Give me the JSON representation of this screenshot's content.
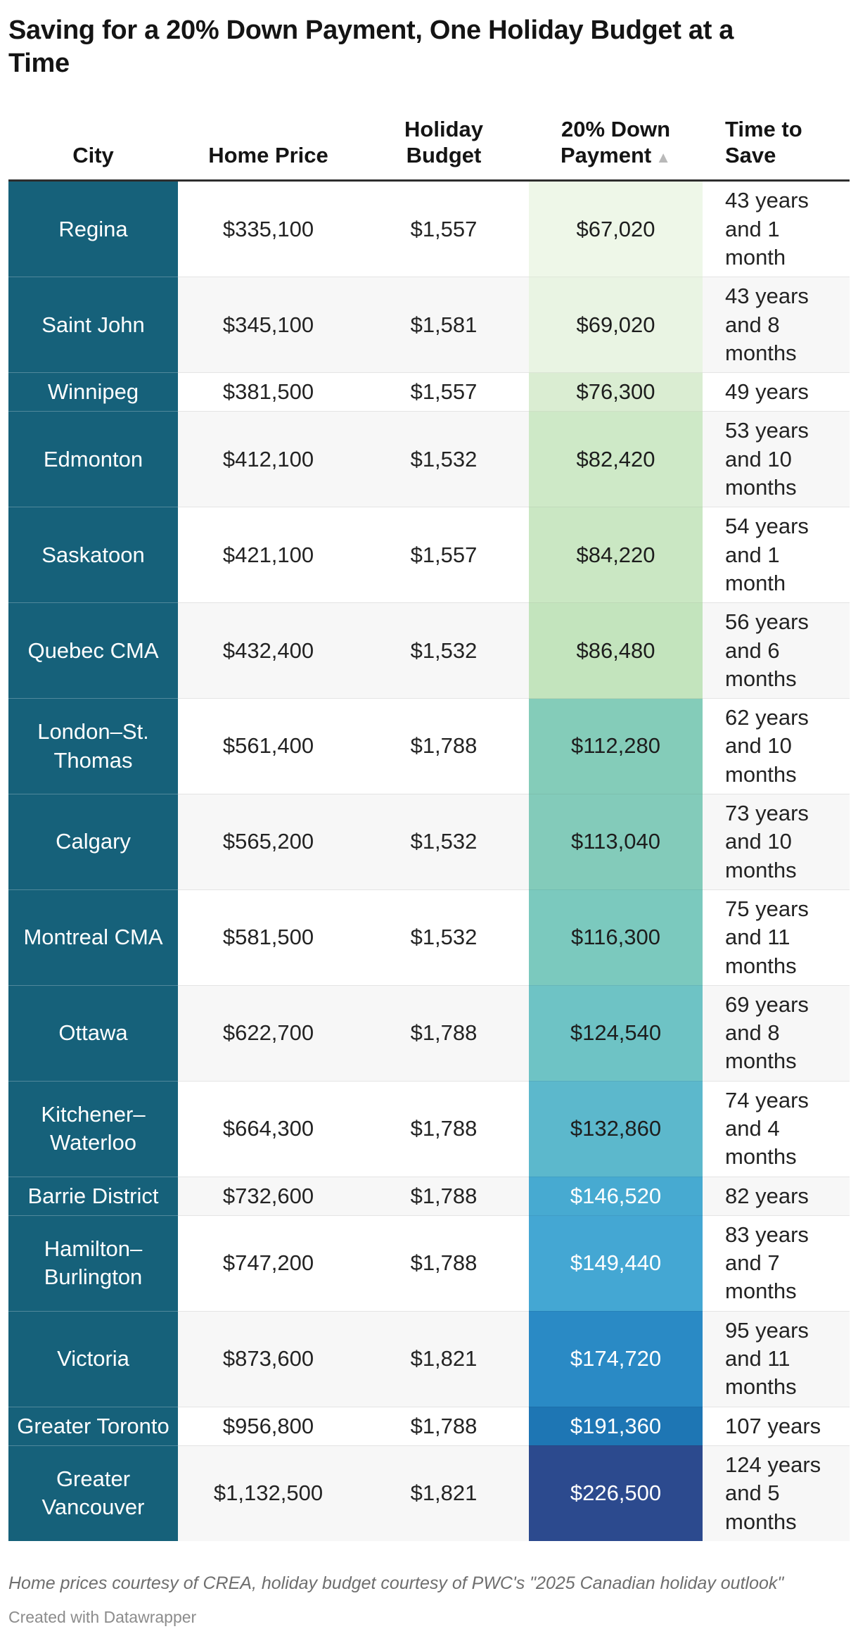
{
  "title": "Saving for a 20% Down Payment, One Holiday Budget at a Time",
  "colors": {
    "city_column_bg": "#16617A",
    "city_text": "#ffffff",
    "header_rule": "#2e2e2e",
    "row_alt_bg": "#f7f7f7",
    "row_divider": "#e4e4e4",
    "sort_arrow": "#b9b9b9"
  },
  "table": {
    "headers": [
      "City",
      "Home Price",
      "Holiday Budget",
      "20% Down Payment",
      "Time to Save"
    ],
    "sort_icon": "▲",
    "sorted_column": "20% Down Payment",
    "rows": [
      {
        "city": "Regina",
        "home_price": "$335,100",
        "holiday_budget": "$1,557",
        "down_payment": "$67,020",
        "time_to_save": "43 years and 1 month",
        "payment_bg": "#EEF7E8",
        "payment_text_color": "#1d1d1d"
      },
      {
        "city": "Saint John",
        "home_price": "$345,100",
        "holiday_budget": "$1,581",
        "down_payment": "$69,020",
        "time_to_save": "43 years and 8 months",
        "payment_bg": "#E9F4E3",
        "payment_text_color": "#1d1d1d"
      },
      {
        "city": "Winnipeg",
        "home_price": "$381,500",
        "holiday_budget": "$1,557",
        "down_payment": "$76,300",
        "time_to_save": "49 years",
        "payment_bg": "#DAEDD2",
        "payment_text_color": "#1d1d1d"
      },
      {
        "city": "Edmonton",
        "home_price": "$412,100",
        "holiday_budget": "$1,532",
        "down_payment": "$82,420",
        "time_to_save": "53 years and 10 months",
        "payment_bg": "#CEE9C7",
        "payment_text_color": "#1d1d1d"
      },
      {
        "city": "Saskatoon",
        "home_price": "$421,100",
        "holiday_budget": "$1,557",
        "down_payment": "$84,220",
        "time_to_save": "54 years and 1 month",
        "payment_bg": "#CAE7C3",
        "payment_text_color": "#1d1d1d"
      },
      {
        "city": "Quebec CMA",
        "home_price": "$432,400",
        "holiday_budget": "$1,532",
        "down_payment": "$86,480",
        "time_to_save": "56 years and 6 months",
        "payment_bg": "#C3E4BD",
        "payment_text_color": "#1d1d1d"
      },
      {
        "city": "London–St. Thomas",
        "home_price": "$561,400",
        "holiday_budget": "$1,788",
        "down_payment": "$112,280",
        "time_to_save": "62 years and 10 months",
        "payment_bg": "#84CCB9",
        "payment_text_color": "#1d1d1d"
      },
      {
        "city": "Calgary",
        "home_price": "$565,200",
        "holiday_budget": "$1,532",
        "down_payment": "$113,040",
        "time_to_save": "73 years and 10 months",
        "payment_bg": "#83CBBA",
        "payment_text_color": "#1d1d1d"
      },
      {
        "city": "Montreal CMA",
        "home_price": "$581,500",
        "holiday_budget": "$1,532",
        "down_payment": "$116,300",
        "time_to_save": "75 years and 11 months",
        "payment_bg": "#7BC9BE",
        "payment_text_color": "#1d1d1d"
      },
      {
        "city": "Ottawa",
        "home_price": "$622,700",
        "holiday_budget": "$1,788",
        "down_payment": "$124,540",
        "time_to_save": "69 years and 8 months",
        "payment_bg": "#6EC3C5",
        "payment_text_color": "#1d1d1d"
      },
      {
        "city": "Kitchener–Waterloo",
        "home_price": "$664,300",
        "holiday_budget": "$1,788",
        "down_payment": "$132,860",
        "time_to_save": "74 years and 4 months",
        "payment_bg": "#5CB8CC",
        "payment_text_color": "#1d1d1d"
      },
      {
        "city": "Barrie District",
        "home_price": "$732,600",
        "holiday_budget": "$1,788",
        "down_payment": "$146,520",
        "time_to_save": "82 years",
        "payment_bg": "#47AAD1",
        "payment_text_color": "#ffffff"
      },
      {
        "city": "Hamilton–Burlington",
        "home_price": "$747,200",
        "holiday_budget": "$1,788",
        "down_payment": "$149,440",
        "time_to_save": "83 years and 7 months",
        "payment_bg": "#44A7D3",
        "payment_text_color": "#ffffff"
      },
      {
        "city": "Victoria",
        "home_price": "$873,600",
        "holiday_budget": "$1,821",
        "down_payment": "$174,720",
        "time_to_save": "95 years and 11 months",
        "payment_bg": "#2A8AC5",
        "payment_text_color": "#ffffff"
      },
      {
        "city": "Greater Toronto",
        "home_price": "$956,800",
        "holiday_budget": "$1,788",
        "down_payment": "$191,360",
        "time_to_save": "107 years",
        "payment_bg": "#1E76B4",
        "payment_text_color": "#ffffff"
      },
      {
        "city": "Greater Vancouver",
        "home_price": "$1,132,500",
        "holiday_budget": "$1,821",
        "down_payment": "$226,500",
        "time_to_save": "124 years and 5 months",
        "payment_bg": "#2C4A8E",
        "payment_text_color": "#ffffff"
      }
    ]
  },
  "chart_data": {
    "type": "table",
    "title": "Saving for a 20% Down Payment, One Holiday Budget at a Time",
    "columns": [
      "City",
      "Home Price",
      "Holiday Budget",
      "20% Down Payment",
      "Time to Save"
    ],
    "sorted_by": "20% Down Payment (ascending)",
    "heatmap_column": "20% Down Payment",
    "rows": [
      [
        "Regina",
        335100,
        1557,
        67020,
        "43 years and 1 month"
      ],
      [
        "Saint John",
        345100,
        1581,
        69020,
        "43 years and 8 months"
      ],
      [
        "Winnipeg",
        381500,
        1557,
        76300,
        "49 years"
      ],
      [
        "Edmonton",
        412100,
        1532,
        82420,
        "53 years and 10 months"
      ],
      [
        "Saskatoon",
        421100,
        1557,
        84220,
        "54 years and 1 month"
      ],
      [
        "Quebec CMA",
        432400,
        1532,
        86480,
        "56 years and 6 months"
      ],
      [
        "London–St. Thomas",
        561400,
        1788,
        112280,
        "62 years and 10 months"
      ],
      [
        "Calgary",
        565200,
        1532,
        113040,
        "73 years and 10 months"
      ],
      [
        "Montreal CMA",
        581500,
        1532,
        116300,
        "75 years and 11 months"
      ],
      [
        "Ottawa",
        622700,
        1788,
        124540,
        "69 years and 8 months"
      ],
      [
        "Kitchener–Waterloo",
        664300,
        1788,
        132860,
        "74 years and 4 months"
      ],
      [
        "Barrie District",
        732600,
        1788,
        146520,
        "82 years"
      ],
      [
        "Hamilton–Burlington",
        747200,
        1788,
        149440,
        "83 years and 7 months"
      ],
      [
        "Victoria",
        873600,
        1821,
        174720,
        "95 years and 11 months"
      ],
      [
        "Greater Toronto",
        956800,
        1788,
        191360,
        "107 years"
      ],
      [
        "Greater Vancouver",
        1132500,
        1821,
        226500,
        "124 years and 5 months"
      ]
    ]
  },
  "footer": {
    "source_note": "Home prices courtesy of CREA, holiday budget courtesy of PWC's \"2025 Canadian holiday outlook\"",
    "attribution": "Created with Datawrapper"
  }
}
